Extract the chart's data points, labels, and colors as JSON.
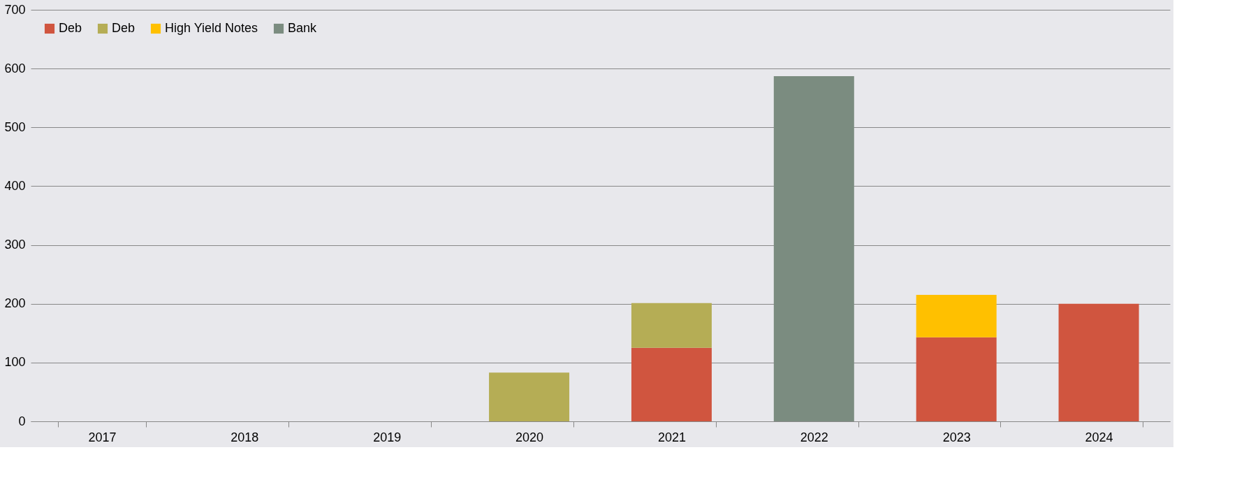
{
  "chart_data": {
    "type": "bar",
    "stacked": true,
    "categories": [
      "2017",
      "2018",
      "2019",
      "2020",
      "2021",
      "2022",
      "2023",
      "2024"
    ],
    "series": [
      {
        "name": "Deb",
        "color": "#d0553f",
        "values": [
          null,
          null,
          null,
          null,
          125,
          null,
          143,
          200
        ]
      },
      {
        "name": "Deb",
        "color": "#b5ad55",
        "values": [
          null,
          null,
          null,
          83,
          76,
          null,
          null,
          null
        ]
      },
      {
        "name": "High Yield Notes",
        "color": "#ffc000",
        "values": [
          null,
          null,
          null,
          null,
          null,
          null,
          72,
          null
        ]
      },
      {
        "name": "Bank",
        "color": "#7b8c80",
        "values": [
          null,
          null,
          null,
          null,
          null,
          587,
          null,
          null
        ]
      }
    ],
    "ylim": [
      0,
      700
    ],
    "yticks": [
      0,
      100,
      200,
      300,
      400,
      500,
      600,
      700
    ],
    "grid": "y",
    "legend": "top left"
  }
}
